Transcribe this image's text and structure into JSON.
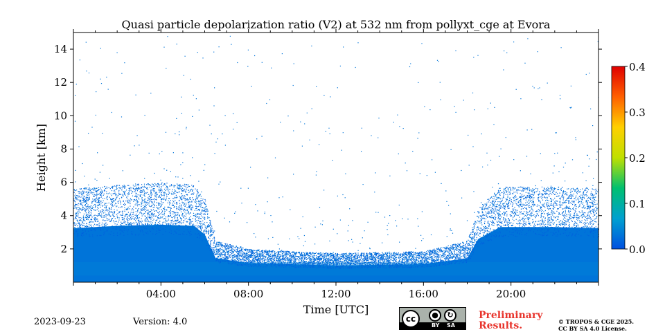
{
  "chart_data": {
    "type": "heatmap",
    "title": "Quasi particle depolarization ratio (V2) at 532 nm from pollyxt_cge at Evora",
    "xlabel": "Time [UTC]",
    "ylabel": "Height [km]",
    "xlim_hours": [
      0,
      24
    ],
    "ylim_km": [
      0,
      15
    ],
    "x_ticks": [
      {
        "value": 4,
        "label": "04:00"
      },
      {
        "value": 8,
        "label": "08:00"
      },
      {
        "value": 12,
        "label": "12:00"
      },
      {
        "value": 16,
        "label": "16:00"
      },
      {
        "value": 20,
        "label": "20:00"
      }
    ],
    "y_ticks": [
      {
        "value": 2,
        "label": "2"
      },
      {
        "value": 4,
        "label": "4"
      },
      {
        "value": 6,
        "label": "6"
      },
      {
        "value": 8,
        "label": "8"
      },
      {
        "value": 10,
        "label": "10"
      },
      {
        "value": 12,
        "label": "12"
      },
      {
        "value": 14,
        "label": "14"
      }
    ],
    "colorbar": {
      "min": 0.0,
      "max": 0.4,
      "ticks": [
        {
          "value": 0.0,
          "label": "0.0"
        },
        {
          "value": 0.1,
          "label": "0.1"
        },
        {
          "value": 0.2,
          "label": "0.2"
        },
        {
          "value": 0.3,
          "label": "0.3"
        },
        {
          "value": 0.4,
          "label": "0.4"
        }
      ],
      "colors": [
        "#0050e0",
        "#00a0d0",
        "#00c070",
        "#c0e000",
        "#ffd000",
        "#ff6000",
        "#e00000"
      ]
    },
    "typical_value": 0.03,
    "mixing_layer_top_km": [
      {
        "t": 0,
        "h": 4.5
      },
      {
        "t": 2,
        "h": 4.7
      },
      {
        "t": 4,
        "h": 4.8
      },
      {
        "t": 5.5,
        "h": 4.7
      },
      {
        "t": 6,
        "h": 4.0
      },
      {
        "t": 6.5,
        "h": 2.0
      },
      {
        "t": 8,
        "h": 1.6
      },
      {
        "t": 12,
        "h": 1.4
      },
      {
        "t": 16,
        "h": 1.5
      },
      {
        "t": 18,
        "h": 2.0
      },
      {
        "t": 18.5,
        "h": 3.6
      },
      {
        "t": 19.5,
        "h": 4.6
      },
      {
        "t": 22,
        "h": 4.6
      },
      {
        "t": 24,
        "h": 4.5
      }
    ]
  },
  "footer": {
    "date": "2023-09-23",
    "version": "Version: 4.0",
    "license_badge": {
      "cc": "cc",
      "by": "BY",
      "sa": "SA"
    },
    "preliminary_line1": "Preliminary",
    "preliminary_line2": "Results.",
    "copyright_line1": "© TROPOS & CGE 2025.",
    "copyright_line2": "CC BY SA 4.0 License."
  }
}
